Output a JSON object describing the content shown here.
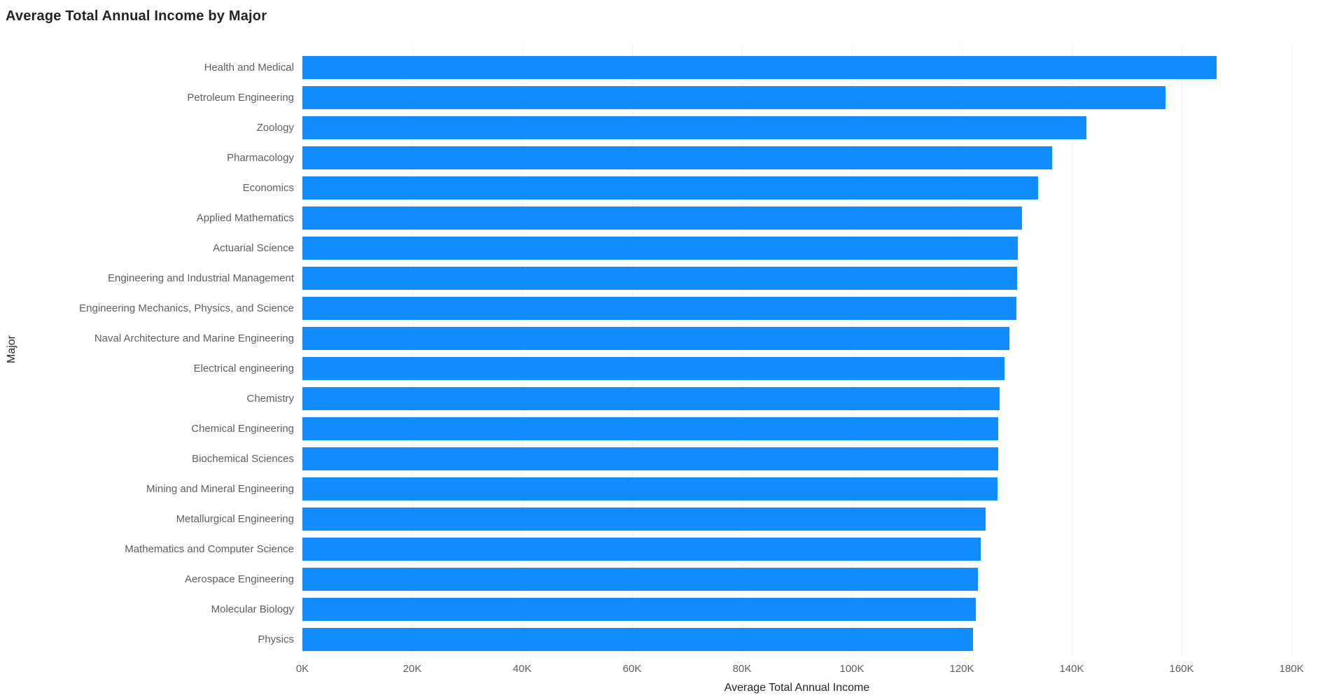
{
  "title": "Average Total Annual Income by Major",
  "colors": {
    "bar": "#118DFF",
    "title_text": "#252423",
    "axis_text": "#605E5C",
    "gridline": "#E2E2E2",
    "background": "#FFFFFF"
  },
  "chart_data": {
    "type": "bar",
    "orientation": "horizontal",
    "title": "Average Total Annual Income by Major",
    "xlabel": "Average Total Annual Income",
    "ylabel": "Major",
    "xlim": [
      0,
      180000
    ],
    "grid": "vertical dotted gridlines every 20K",
    "legend": "none",
    "sort": "descending by value",
    "categories": [
      "Health and Medical",
      "Petroleum Engineering",
      "Zoology",
      "Pharmacology",
      "Economics",
      "Applied Mathematics",
      "Actuarial Science",
      "Engineering and Industrial Management",
      "Engineering Mechanics, Physics, and Science",
      "Naval Architecture and Marine Engineering",
      "Electrical engineering",
      "Chemistry",
      "Chemical Engineering",
      "Biochemical Sciences",
      "Mining and Mineral Engineering",
      "Metallurgical Engineering",
      "Mathematics and Computer Science",
      "Aerospace Engineering",
      "Molecular Biology",
      "Physics"
    ],
    "values": [
      166400,
      157100,
      142700,
      136400,
      133900,
      131000,
      130200,
      130100,
      129900,
      128700,
      127800,
      126900,
      126600,
      126600,
      126500,
      124300,
      123400,
      122900,
      122500,
      122000
    ],
    "x_tick_labels": [
      "0K",
      "20K",
      "40K",
      "60K",
      "80K",
      "100K",
      "120K",
      "140K",
      "160K",
      "180K"
    ],
    "x_tick_values": [
      0,
      20000,
      40000,
      60000,
      80000,
      100000,
      120000,
      140000,
      160000,
      180000
    ]
  }
}
